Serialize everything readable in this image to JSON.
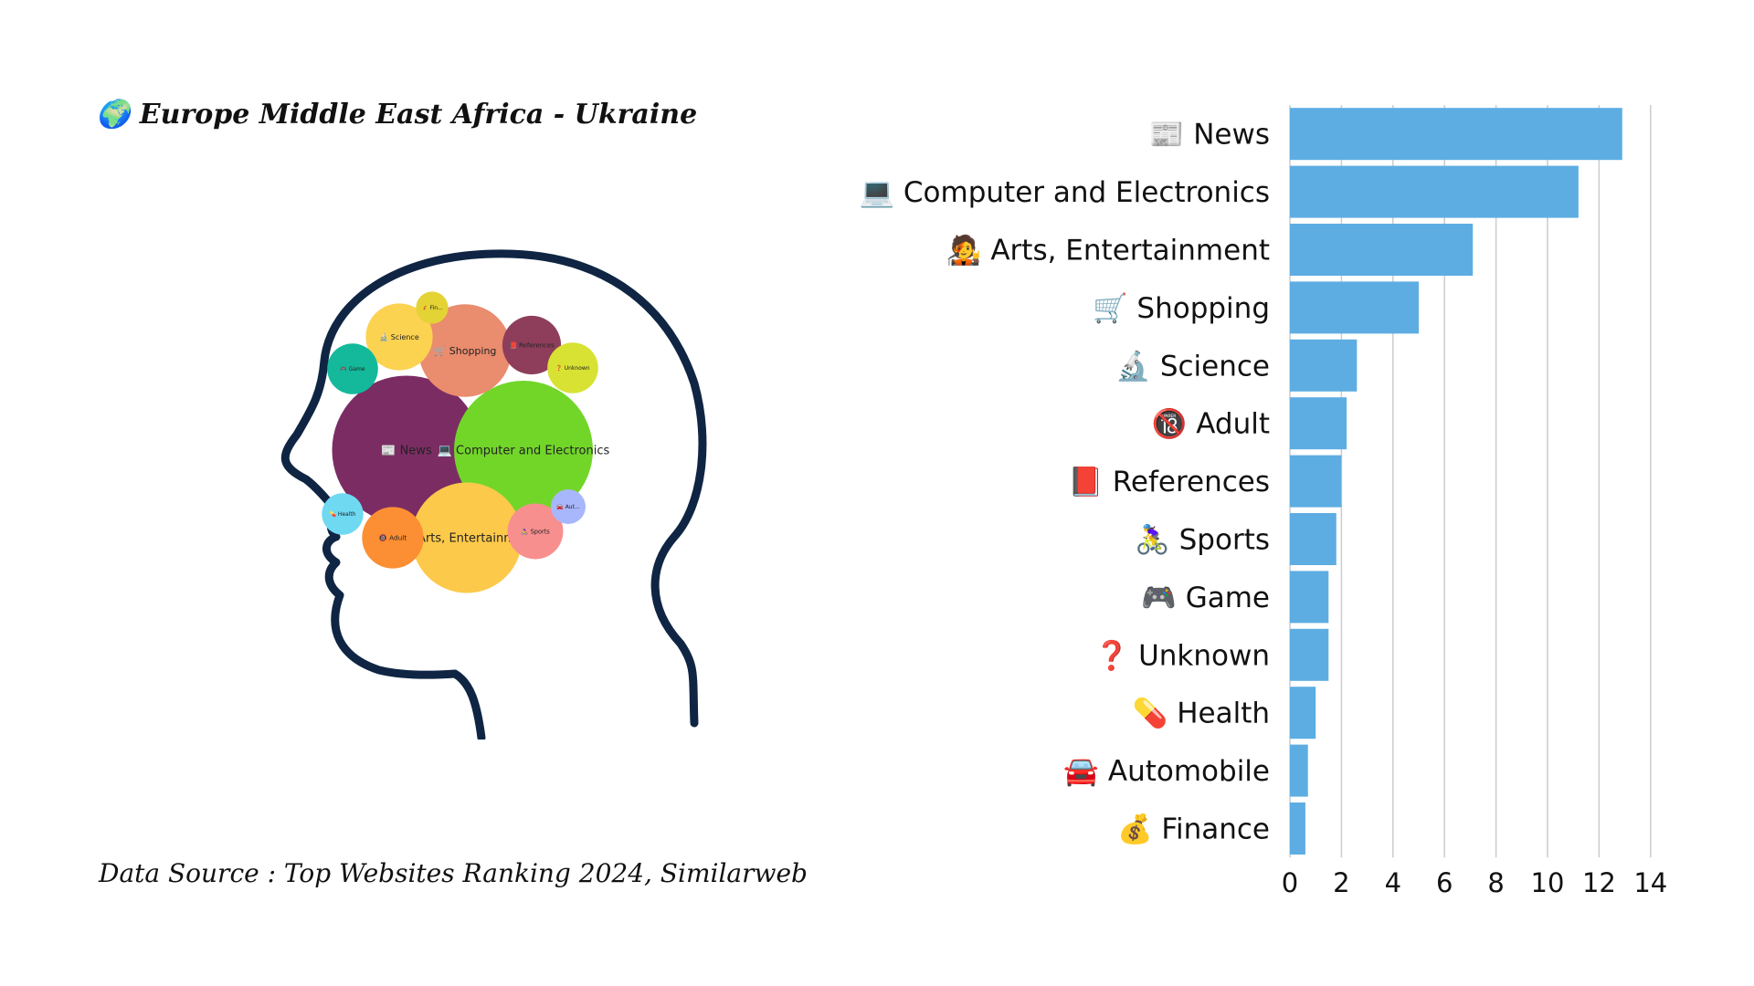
{
  "title": "🌍 Europe Middle East Africa - Ukraine",
  "source": "Data Source : Top Websites Ranking 2024, Similarweb",
  "colors": {
    "bar": "#5dade2",
    "grid": "#cccccc",
    "head_outline": "#0f2543"
  },
  "bubbles": [
    {
      "label": "📰 News",
      "value": 12.9,
      "color": "#7b2d63"
    },
    {
      "label": "💻 Computer and Electronics",
      "value": 11.2,
      "color": "#72d629"
    },
    {
      "label": "🧑‍🎤 Arts, Entertainment",
      "value": 7.1,
      "color": "#fdc94a"
    },
    {
      "label": "🛒 Shopping",
      "value": 5.0,
      "color": "#ea8c6e"
    },
    {
      "label": "🔬 Science",
      "value": 2.6,
      "color": "#fcd251"
    },
    {
      "label": "🔞 Adult",
      "value": 2.2,
      "color": "#fc8f33"
    },
    {
      "label": "📕 References",
      "value": 2.0,
      "color": "#8e3e5b"
    },
    {
      "label": "🚴‍♀️ Sports",
      "value": 1.8,
      "color": "#f88f8f"
    },
    {
      "label": "🎮 Game",
      "value": 1.5,
      "color": "#13b99a"
    },
    {
      "label": "❓ Unknown",
      "value": 1.5,
      "color": "#d8e233"
    },
    {
      "label": "💊 Health",
      "value": 1.0,
      "color": "#6fd9f2"
    },
    {
      "label": "🚘 Aut...",
      "value": 0.7,
      "color": "#a8b7fb"
    },
    {
      "label": "💰 Fin...",
      "value": 0.6,
      "color": "#e3d335"
    }
  ],
  "chart_data": {
    "type": "bar",
    "orientation": "horizontal",
    "categories": [
      "📰 News",
      "💻 Computer and Electronics",
      "🧑‍🎤 Arts, Entertainment",
      "🛒 Shopping",
      "🔬 Science",
      "🔞 Adult",
      "📕 References",
      "🚴‍♀️ Sports",
      "🎮 Game",
      "❓ Unknown",
      "💊 Health",
      "🚘 Automobile",
      "💰 Finance"
    ],
    "values": [
      12.9,
      11.2,
      7.1,
      5.0,
      2.6,
      2.2,
      2.0,
      1.8,
      1.5,
      1.5,
      1.0,
      0.7,
      0.6
    ],
    "xlim": [
      0,
      14
    ],
    "xticks": [
      "0",
      "2",
      "4",
      "6",
      "8",
      "10",
      "12",
      "14"
    ],
    "grid": true,
    "title": "",
    "xlabel": "",
    "ylabel": ""
  }
}
